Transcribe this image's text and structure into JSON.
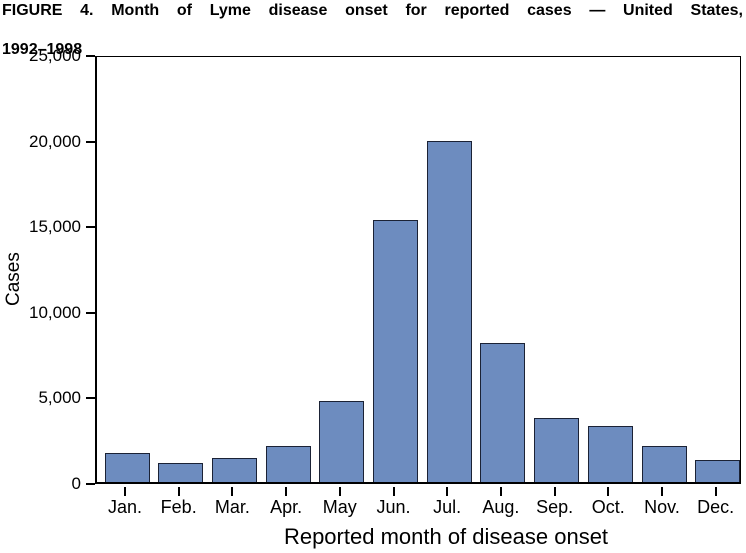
{
  "figure": {
    "title_line1": "FIGURE 4. Month of Lyme disease onset for reported cases — United States,",
    "title_line2": "1992–1998"
  },
  "chart_data": {
    "type": "bar",
    "title": "FIGURE 4. Month of Lyme disease onset for reported cases — United States, 1992–1998",
    "categories": [
      "Jan.",
      "Feb.",
      "Mar.",
      "Apr.",
      "May",
      "Jun.",
      "Jul.",
      "Aug.",
      "Sep.",
      "Oct.",
      "Nov.",
      "Dec."
    ],
    "values": [
      1700,
      1100,
      1400,
      2100,
      4750,
      15300,
      19900,
      8100,
      3750,
      3250,
      2100,
      1300
    ],
    "xlabel": "Reported month of disease onset",
    "ylabel": "Cases",
    "ylim": [
      0,
      25000
    ],
    "ytick_values": [
      0,
      5000,
      10000,
      15000,
      20000,
      25000
    ],
    "ytick_labels": [
      "0",
      "5,000",
      "10,000",
      "15,000",
      "20,000",
      "25,000"
    ],
    "bar_color": "#6d8cbf",
    "bar_border_color": "#1b2235",
    "axis_color": "#000000",
    "grid": false,
    "legend": false
  }
}
